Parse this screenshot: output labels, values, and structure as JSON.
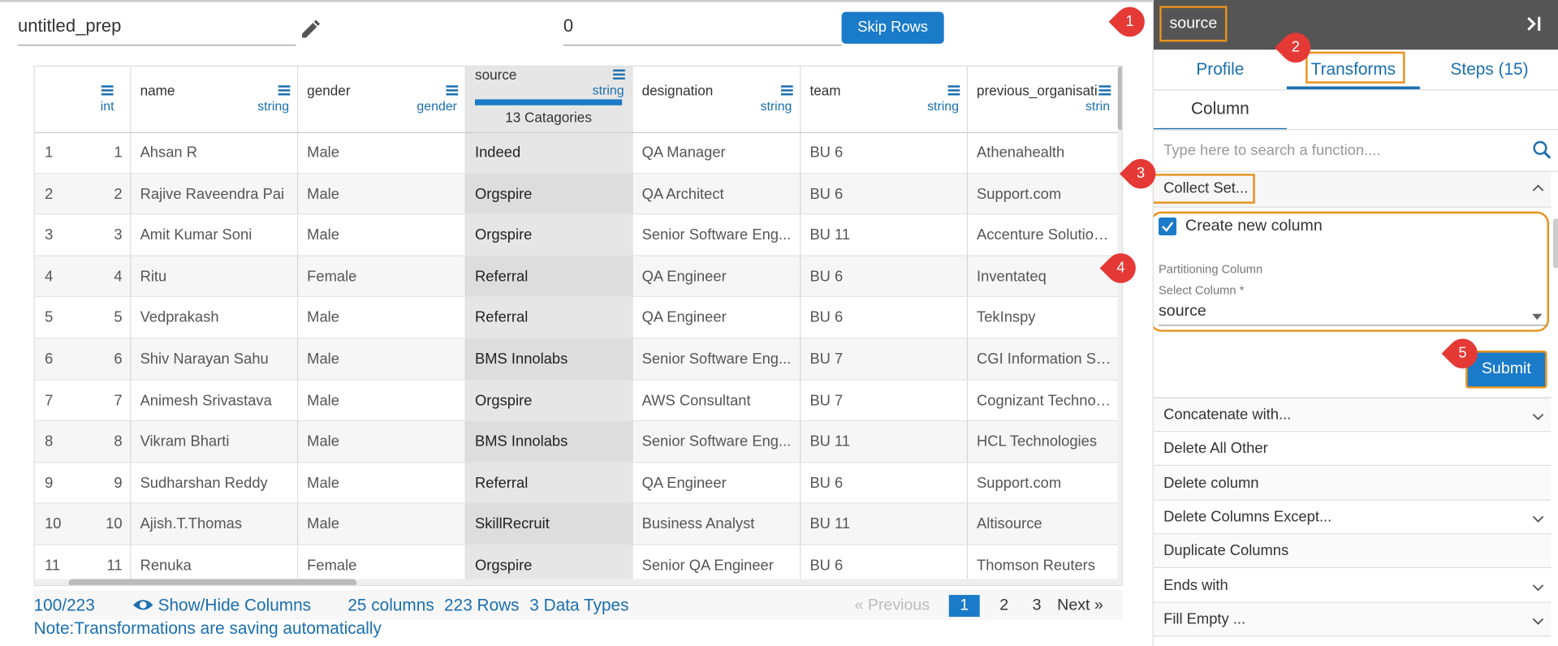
{
  "header": {
    "title": "untitled_prep",
    "skip_value": "0",
    "skip_button": "Skip Rows"
  },
  "table": {
    "columns": [
      {
        "type": "int"
      },
      {
        "name": "name",
        "type": "string"
      },
      {
        "name": "gender",
        "type": "gender"
      },
      {
        "name": "source",
        "type": "string",
        "summary": "13 Catagories"
      },
      {
        "name": "designation",
        "type": "string"
      },
      {
        "name": "team",
        "type": "string"
      },
      {
        "name": "previous_organisati...",
        "type": "strin"
      }
    ],
    "rows": [
      [
        1,
        1,
        "Ahsan R",
        "Male",
        "Indeed",
        "QA Manager",
        "BU 6",
        "Athenahealth"
      ],
      [
        2,
        2,
        "Rajive Raveendra Pai",
        "Male",
        "Orgspire",
        "QA Architect",
        "BU 6",
        "Support.com"
      ],
      [
        3,
        3,
        "Amit Kumar Soni",
        "Male",
        "Orgspire",
        "Senior Software Eng...",
        "BU 11",
        "Accenture Solutions."
      ],
      [
        4,
        4,
        "Ritu",
        "Female",
        "Referral",
        "QA Engineer",
        "BU 6",
        "Inventateq"
      ],
      [
        5,
        5,
        "Vedprakash",
        "Male",
        "Referral",
        "QA Engineer",
        "BU 6",
        "TekInspy"
      ],
      [
        6,
        6,
        "Shiv Narayan Sahu",
        "Male",
        "BMS Innolabs",
        "Senior Software Eng...",
        "BU 7",
        "CGI Information Sys..."
      ],
      [
        7,
        7,
        "Animesh Srivastava",
        "Male",
        "Orgspire",
        "AWS Consultant",
        "BU 7",
        "Cognizant Technolo..."
      ],
      [
        8,
        8,
        "Vikram Bharti",
        "Male",
        "BMS Innolabs",
        "Senior Software Eng...",
        "BU 11",
        "HCL Technologies"
      ],
      [
        9,
        9,
        "Sudharshan Reddy",
        "Male",
        "Referral",
        "QA Engineer",
        "BU 6",
        "Support.com"
      ],
      [
        10,
        10,
        "Ajish.T.Thomas",
        "Male",
        "SkillRecruit",
        "Business Analyst",
        "BU 11",
        "Altisource"
      ],
      [
        11,
        11,
        "Renuka",
        "Female",
        "Orgspire",
        "Senior QA Engineer",
        "BU 6",
        "Thomson Reuters"
      ]
    ]
  },
  "footer": {
    "row_count": "100/223",
    "show_hide": "Show/Hide Columns",
    "columns": "25 columns",
    "rows": "223 Rows",
    "data_types": "3 Data Types",
    "note": "Note:Transformations are saving automatically",
    "pagination": {
      "previous": "« Previous",
      "pages": [
        "1",
        "2",
        "3"
      ],
      "next": "Next »"
    }
  },
  "panel": {
    "column": "source",
    "tabs": [
      "Profile",
      "Transforms",
      "Steps (15)"
    ],
    "subtab": "Column",
    "search_placeholder": "Type here to search a function....",
    "selected": "Collect Set...",
    "checkbox": "Create new column",
    "section": "Partitioning Column",
    "field_label": "Select Column *",
    "field_value": "source",
    "submit": "Submit",
    "functions": [
      "Concatenate with...",
      "Delete All Other",
      "Delete column",
      "Delete Columns Except...",
      "Duplicate Columns",
      "Ends with",
      "Fill Empty ..."
    ]
  },
  "markers": [
    "1",
    "2",
    "3",
    "4",
    "5"
  ]
}
